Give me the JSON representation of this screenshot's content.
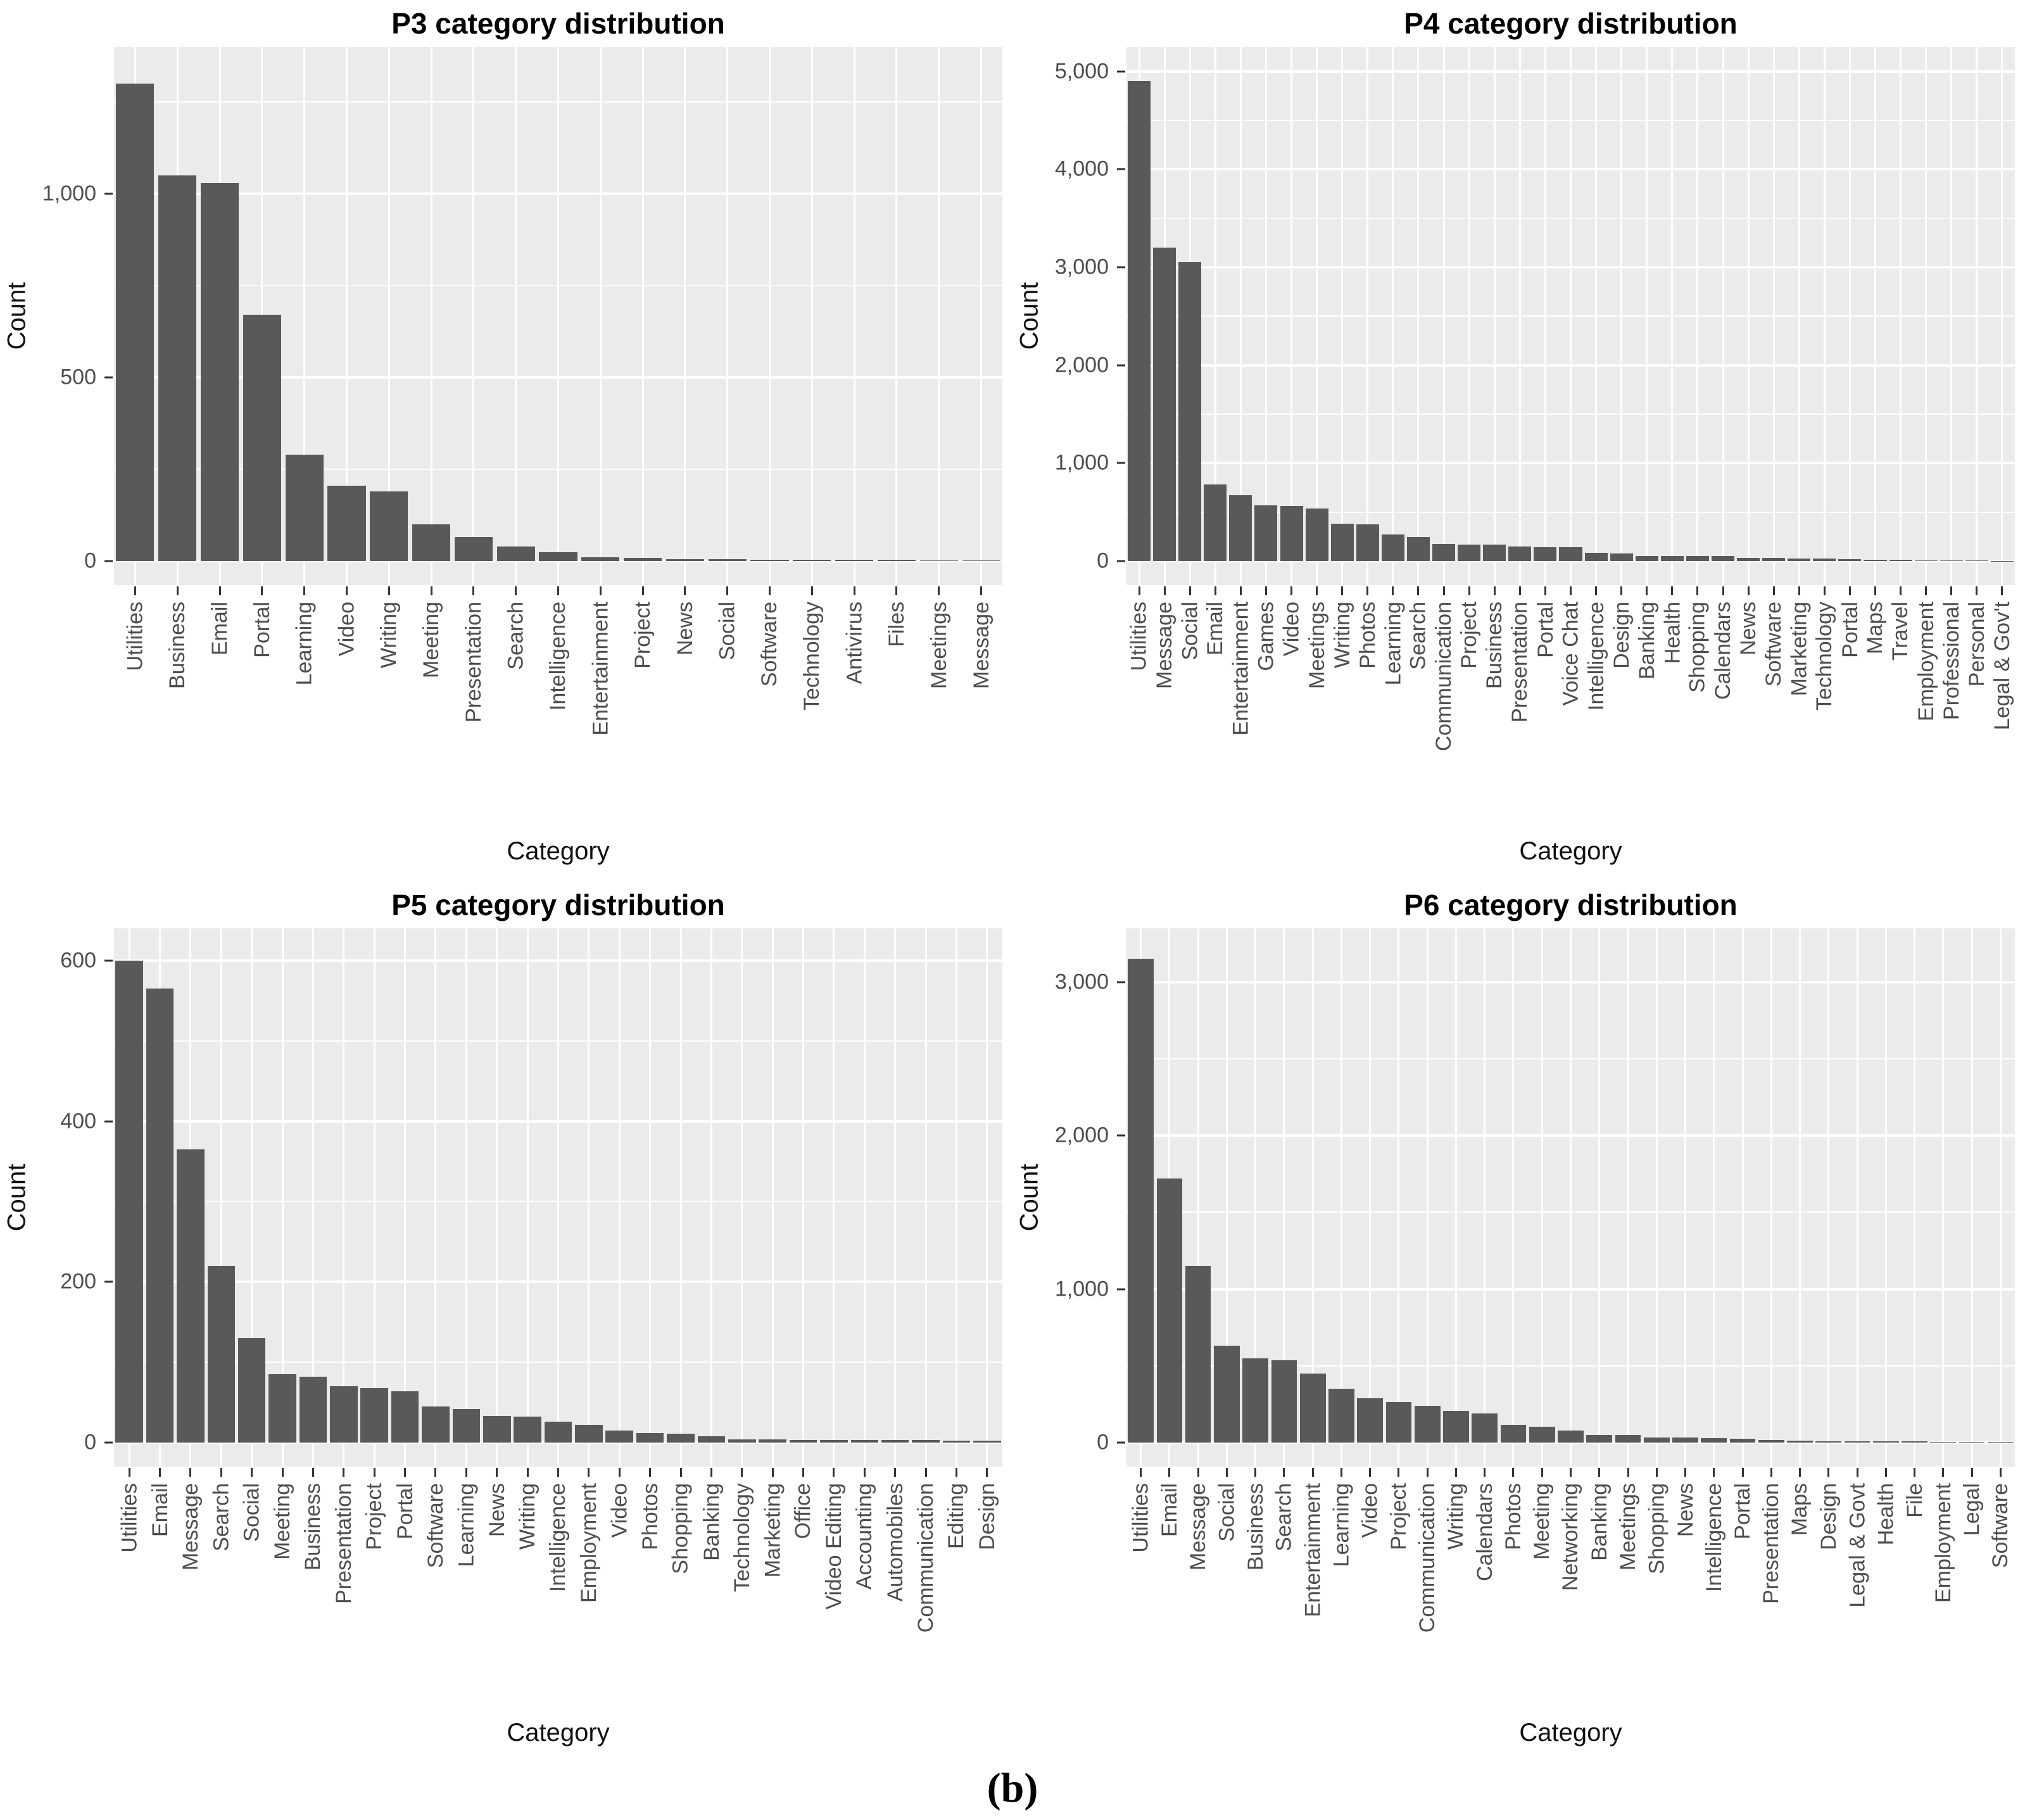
{
  "caption": "(b)",
  "colors": {
    "bar": "#595959",
    "panel_background": "#ebebeb",
    "gridline": "#ffffff",
    "axis_text": "#4d4d4d",
    "title_text": "#000000"
  },
  "chart_data": [
    {
      "type": "bar",
      "title": "P3 category distribution",
      "xlabel": "Category",
      "ylabel": "Count",
      "ylim": [
        0,
        1400
      ],
      "grid": "on",
      "legend": "none",
      "yticks": [
        {
          "v": 0,
          "label": "0"
        },
        {
          "v": 500,
          "label": "500"
        },
        {
          "v": 1000,
          "label": "1,000"
        }
      ],
      "minor_gridlines": [
        250,
        750,
        1250
      ],
      "categories": [
        "Utilities",
        "Business",
        "Email",
        "Portal",
        "Learning",
        "Video",
        "Writing",
        "Meeting",
        "Presentation",
        "Search",
        "Intelligence",
        "Entertainment",
        "Project",
        "News",
        "Social",
        "Software",
        "Technology",
        "Antivirus",
        "Files",
        "Meetings",
        "Message"
      ],
      "values": [
        1300,
        1050,
        1030,
        670,
        290,
        205,
        190,
        100,
        65,
        40,
        25,
        10,
        8,
        6,
        5,
        4,
        4,
        3,
        3,
        2,
        2
      ]
    },
    {
      "type": "bar",
      "title": "P4 category distribution",
      "xlabel": "Category",
      "ylabel": "Count",
      "ylim": [
        0,
        5250
      ],
      "grid": "on",
      "legend": "none",
      "yticks": [
        {
          "v": 0,
          "label": "0"
        },
        {
          "v": 1000,
          "label": "1,000"
        },
        {
          "v": 2000,
          "label": "2,000"
        },
        {
          "v": 3000,
          "label": "3,000"
        },
        {
          "v": 4000,
          "label": "4,000"
        },
        {
          "v": 5000,
          "label": "5,000"
        }
      ],
      "minor_gridlines": [
        500,
        1500,
        2500,
        3500,
        4500
      ],
      "categories": [
        "Utilities",
        "Message",
        "Social",
        "Email",
        "Entertainment",
        "Games",
        "Video",
        "Meetings",
        "Writing",
        "Photos",
        "Learning",
        "Search",
        "Communication",
        "Project",
        "Business",
        "Presentation",
        "Portal",
        "Voice Chat",
        "Intelligence",
        "Design",
        "Banking",
        "Health",
        "Shopping",
        "Calendars",
        "News",
        "Software",
        "Marketing",
        "Technology",
        "Portal",
        "Maps",
        "Travel",
        "Employment",
        "Professional",
        "Personal",
        "Legal & Gov't"
      ],
      "values": [
        4900,
        3200,
        3050,
        780,
        670,
        570,
        565,
        535,
        380,
        375,
        270,
        245,
        175,
        170,
        170,
        150,
        145,
        140,
        85,
        80,
        55,
        55,
        55,
        50,
        35,
        30,
        28,
        25,
        22,
        15,
        10,
        8,
        6,
        4,
        3
      ]
    },
    {
      "type": "bar",
      "title": "P5 category distribution",
      "xlabel": "Category",
      "ylabel": "Count",
      "ylim": [
        0,
        640
      ],
      "grid": "on",
      "legend": "none",
      "yticks": [
        {
          "v": 0,
          "label": "0"
        },
        {
          "v": 200,
          "label": "200"
        },
        {
          "v": 400,
          "label": "400"
        },
        {
          "v": 600,
          "label": "600"
        }
      ],
      "minor_gridlines": [
        100,
        300,
        500
      ],
      "categories": [
        "Utilities",
        "Email",
        "Message",
        "Search",
        "Social",
        "Meeting",
        "Business",
        "Presentation",
        "Project",
        "Portal",
        "Software",
        "Learning",
        "News",
        "Writing",
        "Intelligence",
        "Employment",
        "Video",
        "Photos",
        "Shopping",
        "Banking",
        "Technology",
        "Marketing",
        "Office",
        "Video Editing",
        "Accounting",
        "Automobiles",
        "Communication",
        "Editing",
        "Design"
      ],
      "values": [
        600,
        565,
        365,
        220,
        130,
        85,
        82,
        70,
        68,
        64,
        45,
        42,
        33,
        32,
        26,
        22,
        15,
        12,
        11,
        8,
        4,
        4,
        3,
        3,
        3,
        3,
        3,
        2,
        2
      ]
    },
    {
      "type": "bar",
      "title": "P6 category distribution",
      "xlabel": "Category",
      "ylabel": "Count",
      "ylim": [
        0,
        3350
      ],
      "grid": "on",
      "legend": "none",
      "yticks": [
        {
          "v": 0,
          "label": "0"
        },
        {
          "v": 1000,
          "label": "1,000"
        },
        {
          "v": 2000,
          "label": "2,000"
        },
        {
          "v": 3000,
          "label": "3,000"
        }
      ],
      "minor_gridlines": [
        500,
        1500,
        2500
      ],
      "categories": [
        "Utilities",
        "Email",
        "Message",
        "Social",
        "Business",
        "Search",
        "Entertainment",
        "Learning",
        "Video",
        "Project",
        "Communication",
        "Writing",
        "Calendars",
        "Photos",
        "Meeting",
        "Networking",
        "Banking",
        "Meetings",
        "Shopping",
        "News",
        "Intelligence",
        "Portal",
        "Presentation",
        "Maps",
        "Design",
        "Legal & Govt",
        "Health",
        "File",
        "Employment",
        "Legal",
        "Software"
      ],
      "values": [
        3150,
        1720,
        1150,
        630,
        550,
        535,
        450,
        350,
        290,
        265,
        240,
        205,
        190,
        115,
        105,
        80,
        50,
        48,
        35,
        32,
        30,
        25,
        15,
        12,
        10,
        10,
        8,
        8,
        5,
        4,
        3
      ]
    }
  ]
}
